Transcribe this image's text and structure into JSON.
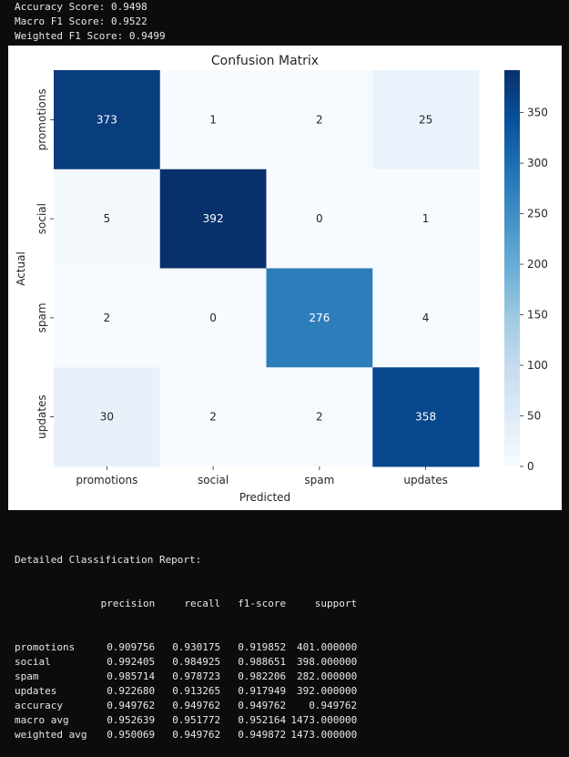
{
  "console": {
    "accuracy_line": "Accuracy Score: 0.9498",
    "macro_f1_line": "Macro F1 Score: 0.9522",
    "weighted_f1_line": "Weighted F1 Score: 0.9499"
  },
  "chart_data": {
    "type": "heatmap",
    "title": "Confusion Matrix",
    "xlabel": "Predicted",
    "ylabel": "Actual",
    "x_categories": [
      "promotions",
      "social",
      "spam",
      "updates"
    ],
    "y_categories": [
      "promotions",
      "social",
      "spam",
      "updates"
    ],
    "values": [
      [
        373,
        1,
        2,
        25
      ],
      [
        5,
        392,
        0,
        1
      ],
      [
        2,
        0,
        276,
        4
      ],
      [
        30,
        2,
        2,
        358
      ]
    ],
    "colormap": "Blues",
    "vmin": 0,
    "vmax": 392,
    "colorbar_ticks": [
      0,
      50,
      100,
      150,
      200,
      250,
      300,
      350
    ]
  },
  "report": {
    "title": "Detailed Classification Report:",
    "columns": [
      "precision",
      "recall",
      "f1-score",
      "support"
    ],
    "rows": [
      {
        "label": "promotions",
        "values": [
          "0.909756",
          "0.930175",
          "0.919852",
          "401.000000"
        ]
      },
      {
        "label": "social",
        "values": [
          "0.992405",
          "0.984925",
          "0.988651",
          "398.000000"
        ]
      },
      {
        "label": "spam",
        "values": [
          "0.985714",
          "0.978723",
          "0.982206",
          "282.000000"
        ]
      },
      {
        "label": "updates",
        "values": [
          "0.922680",
          "0.913265",
          "0.917949",
          "392.000000"
        ]
      },
      {
        "label": "accuracy",
        "values": [
          "0.949762",
          "0.949762",
          "0.949762",
          "0.949762"
        ]
      },
      {
        "label": "macro avg",
        "values": [
          "0.952639",
          "0.951772",
          "0.952164",
          "1473.000000"
        ]
      },
      {
        "label": "weighted avg",
        "values": [
          "0.950069",
          "0.949762",
          "0.949872",
          "1473.000000"
        ]
      }
    ]
  }
}
